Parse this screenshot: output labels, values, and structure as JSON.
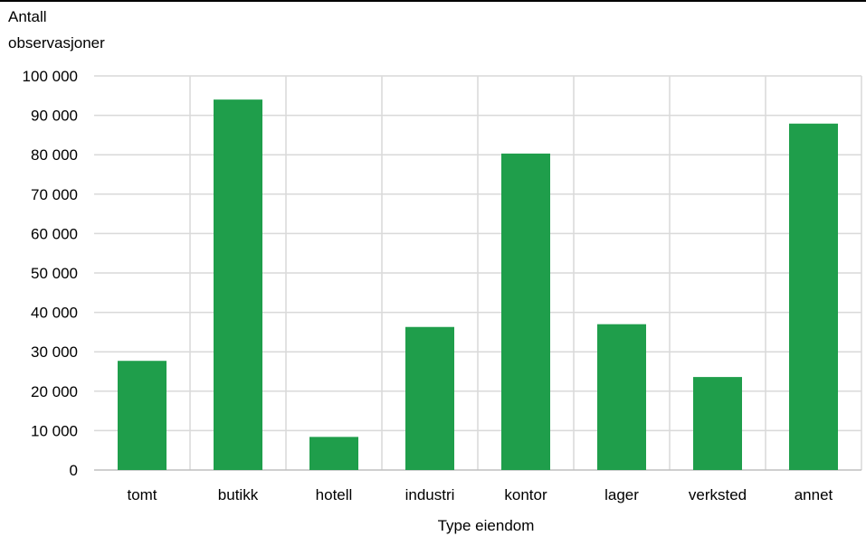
{
  "chart_data": {
    "type": "bar",
    "title": "",
    "ylabel_lines": [
      "Antall",
      "observasjoner"
    ],
    "xlabel": "Type eiendom",
    "categories": [
      "tomt",
      "butikk",
      "hotell",
      "industri",
      "kontor",
      "lager",
      "verksted",
      "annet"
    ],
    "values": [
      27700,
      94000,
      8400,
      36300,
      80300,
      37000,
      23600,
      87900
    ],
    "ylim": [
      0,
      100000
    ],
    "yticks": [
      0,
      10000,
      20000,
      30000,
      40000,
      50000,
      60000,
      70000,
      80000,
      90000,
      100000
    ],
    "ytick_labels": [
      "0",
      "10 000",
      "20 000",
      "30 000",
      "40 000",
      "50 000",
      "60 000",
      "70 000",
      "80 000",
      "90 000",
      "100 000"
    ],
    "grid": true,
    "legend": "none",
    "bar_color": "#1f9e4b",
    "grid_color": "#d9d9d9"
  }
}
